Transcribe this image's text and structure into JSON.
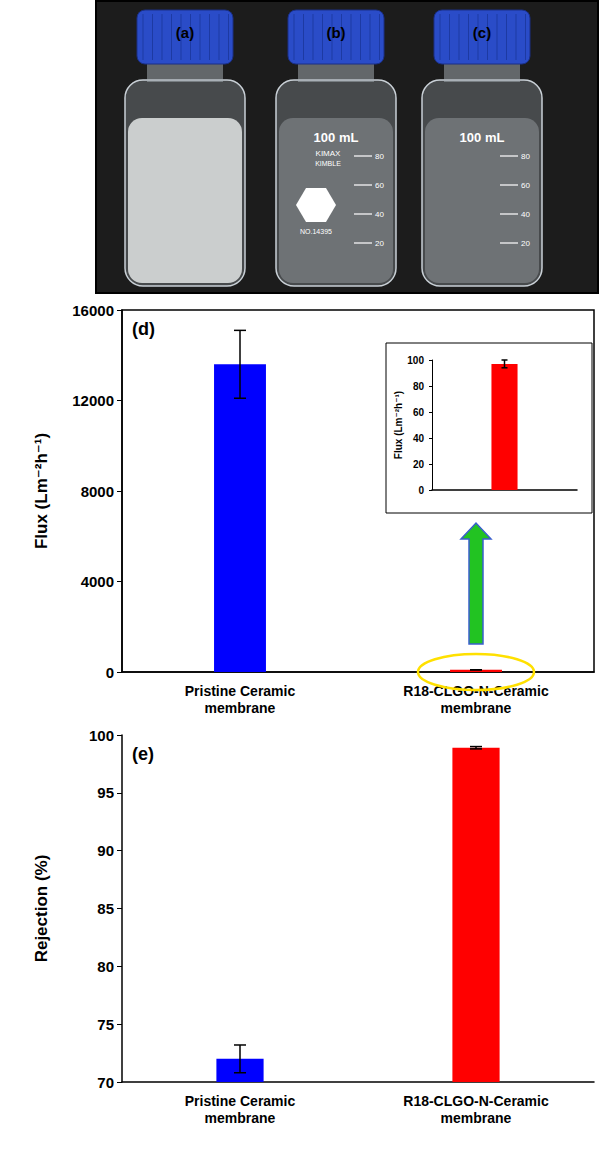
{
  "photo": {
    "labels": [
      "(a)",
      "(b)",
      "(c)"
    ],
    "bottle_texts": [
      "100 mL",
      "KIMAX",
      "KIMBLE",
      "NO.14395"
    ],
    "graduations": [
      20,
      40,
      60,
      80
    ]
  },
  "chart_data": [
    {
      "type": "bar",
      "panel_label": "(d)",
      "y_label": "Flux (Lm⁻²h⁻¹)",
      "categories": [
        "Pristine Ceramic membrane",
        "R18-CLGO-N-Ceramic membrane"
      ],
      "values": [
        13600,
        97
      ],
      "errors": [
        1500,
        3
      ],
      "colors": [
        "#0000ff",
        "#ff0000"
      ],
      "ylim": [
        0,
        16000
      ],
      "yticks": [
        0,
        4000,
        8000,
        12000,
        16000
      ],
      "grid": false
    },
    {
      "type": "bar",
      "y_label": "Flux (Lm⁻²h⁻¹)",
      "categories": [
        null
      ],
      "values": [
        97
      ],
      "errors": [
        3
      ],
      "colors": [
        "#ff0000"
      ],
      "ylim": [
        0,
        100
      ],
      "yticks": [
        0,
        20,
        40,
        60,
        80,
        100
      ],
      "grid": false
    },
    {
      "type": "bar",
      "panel_label": "(e)",
      "y_label": "Rejection (%)",
      "categories": [
        "Pristine Ceramic membrane",
        "R18-CLGO-N-Ceramic membrane"
      ],
      "values": [
        72,
        98.9
      ],
      "errors": [
        1.2,
        0.1
      ],
      "colors": [
        "#0000ff",
        "#ff0000"
      ],
      "ylim": [
        70,
        100
      ],
      "yticks": [
        70,
        75,
        80,
        85,
        90,
        95,
        100
      ],
      "grid": false
    }
  ]
}
